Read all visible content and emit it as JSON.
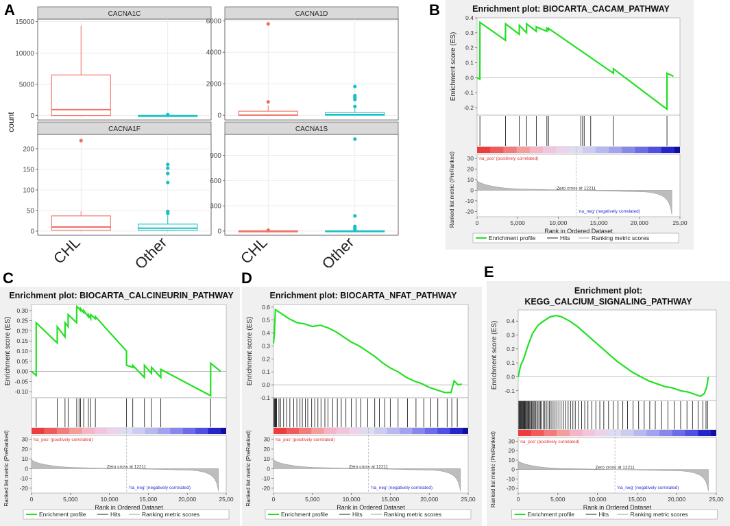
{
  "panel_letters": {
    "a": "A",
    "b": "B",
    "c": "C",
    "d": "D",
    "e": "E"
  },
  "chart_data": [
    {
      "id": "A",
      "type": "box",
      "ylabel": "count",
      "groups": [
        "CHL",
        "Other"
      ],
      "colors": {
        "CHL": "#f26e63",
        "Other": "#19bfc4"
      },
      "facets": [
        {
          "title": "CACNA1C",
          "ylim": [
            -700,
            15400
          ],
          "ticks": [
            0,
            5000,
            10000,
            15000
          ],
          "boxes": [
            {
              "group": "CHL",
              "min": 0,
              "q1": 0,
              "median": 950,
              "q3": 6500,
              "max": 14300,
              "outliers": []
            },
            {
              "group": "Other",
              "min": 0,
              "q1": 0,
              "median": 5,
              "q3": 20,
              "max": 60,
              "outliers": [
                90,
                150
              ]
            }
          ]
        },
        {
          "title": "CACNA1D",
          "ylim": [
            -300,
            6100
          ],
          "ticks": [
            0,
            2000,
            4000,
            6000
          ],
          "boxes": [
            {
              "group": "CHL",
              "min": 0,
              "q1": 0,
              "median": 10,
              "q3": 260,
              "max": 620,
              "outliers": [
                850,
                5800
              ]
            },
            {
              "group": "Other",
              "min": 0,
              "q1": 0,
              "median": 50,
              "q3": 180,
              "max": 420,
              "outliers": [
                560,
                1000,
                1120,
                1250,
                1830
              ]
            }
          ]
        },
        {
          "title": "CACNA1F",
          "ylim": [
            -10,
            235
          ],
          "ticks": [
            0,
            50,
            100,
            150,
            200
          ],
          "boxes": [
            {
              "group": "CHL",
              "min": 0,
              "q1": 2,
              "median": 10,
              "q3": 37,
              "max": 48,
              "outliers": [
                220
              ]
            },
            {
              "group": "Other",
              "min": 0,
              "q1": 2,
              "median": 7,
              "q3": 17,
              "max": 38,
              "outliers": [
                43,
                48,
                118,
                140,
                153,
                162
              ]
            }
          ]
        },
        {
          "title": "CACNA1S",
          "ylim": [
            -50,
            1150
          ],
          "ticks": [
            0,
            300,
            600,
            900
          ],
          "boxes": [
            {
              "group": "CHL",
              "min": 0,
              "q1": 0,
              "median": 0,
              "q3": 1,
              "max": 2,
              "outliers": [
                6,
                10
              ]
            },
            {
              "group": "Other",
              "min": 0,
              "q1": 0,
              "median": 0,
              "q3": 2,
              "max": 4,
              "outliers": [
                20,
                40,
                55,
                180,
                1095
              ]
            }
          ]
        }
      ]
    },
    {
      "id": "B",
      "type": "line",
      "title": "Enrichment plot: BIOCARTA_CACAM_PATHWAY",
      "ylabel": "Enrichment score (ES)",
      "xlabel": "Rank in Ordered Dataset",
      "ylabel2": "Ranked list metric (PreRanked)",
      "ylim": [
        -0.25,
        0.4
      ],
      "yticks": [
        "0.4",
        "0.3",
        "0.2",
        "0.1",
        "0.0",
        "-0.1",
        "-0.2"
      ],
      "ytick_values": [
        0.4,
        0.3,
        0.2,
        0.1,
        0.0,
        -0.1,
        -0.2
      ],
      "xlim": [
        0,
        25000
      ],
      "xticks": [
        "0",
        "5,000",
        "10,000",
        "15,000",
        "20,000",
        "25,00"
      ],
      "xtick_values": [
        0,
        5000,
        10000,
        15000,
        20000,
        25000
      ],
      "metric_ticks": [
        "30",
        "20",
        "10",
        "0",
        "-10",
        "-20"
      ],
      "metric_values": [
        30,
        20,
        10,
        0,
        -10,
        -20
      ],
      "hits": [
        350,
        3500,
        5200,
        6100,
        7300,
        8600,
        8800,
        12800,
        13000,
        13200,
        14000,
        16800,
        23400
      ],
      "es_points": [
        [
          0,
          0.0
        ],
        [
          350,
          -0.01
        ],
        [
          351,
          0.37
        ],
        [
          3500,
          0.25
        ],
        [
          3501,
          0.36
        ],
        [
          5200,
          0.29
        ],
        [
          5201,
          0.35
        ],
        [
          6100,
          0.3
        ],
        [
          6101,
          0.36
        ],
        [
          7300,
          0.31
        ],
        [
          7301,
          0.34
        ],
        [
          8600,
          0.31
        ],
        [
          8601,
          0.33
        ],
        [
          8800,
          0.32
        ],
        [
          8801,
          0.33
        ],
        [
          16800,
          0.03
        ],
        [
          16801,
          0.06
        ],
        [
          23400,
          -0.21
        ],
        [
          23401,
          0.03
        ],
        [
          24200,
          0.01
        ]
      ],
      "zero_cross": "Zero cross at 12211",
      "zero_cross_rank": 12211,
      "pos_label": "'na_pos' (positively correlated)",
      "neg_label": "'na_neg' (negatively correlated)",
      "legend": [
        "Enrichment profile",
        "Hits",
        "Ranking metric scores"
      ]
    },
    {
      "id": "C",
      "type": "line",
      "title": "Enrichment plot: BIOCARTA_CALCINEURIN_PATHWAY",
      "ylabel": "Enrichment score (ES)",
      "xlabel": "Rank in Ordered Dataset",
      "ylabel2": "Ranked list metric (PreRanked)",
      "ylim": [
        -0.13,
        0.33
      ],
      "yticks": [
        "0.30",
        "0.25",
        "0.20",
        "0.15",
        "0.10",
        "0.05",
        "0.00",
        "-0.05",
        "-0.10"
      ],
      "ytick_values": [
        0.3,
        0.25,
        0.2,
        0.15,
        0.1,
        0.05,
        0.0,
        -0.05,
        -0.1
      ],
      "xlim": [
        0,
        25000
      ],
      "xticks": [
        "0",
        "5,000",
        "10,000",
        "15,000",
        "20,000",
        "25,00"
      ],
      "xtick_values": [
        0,
        5000,
        10000,
        15000,
        20000,
        25000
      ],
      "metric_ticks": [
        "30",
        "20",
        "10",
        "0",
        "-10",
        "-20"
      ],
      "metric_values": [
        30,
        20,
        10,
        0,
        -10,
        -20
      ],
      "hits": [
        600,
        3300,
        4300,
        4700,
        5800,
        6100,
        6300,
        6700,
        7300,
        7600,
        8200,
        12200,
        13000,
        14500,
        15400,
        16600,
        23000
      ],
      "es_points": [
        [
          0,
          0.0
        ],
        [
          600,
          -0.02
        ],
        [
          601,
          0.24
        ],
        [
          3300,
          0.14
        ],
        [
          3301,
          0.22
        ],
        [
          4300,
          0.17
        ],
        [
          4301,
          0.24
        ],
        [
          4700,
          0.22
        ],
        [
          4701,
          0.28
        ],
        [
          5800,
          0.24
        ],
        [
          5801,
          0.32
        ],
        [
          6100,
          0.31
        ],
        [
          6300,
          0.3
        ],
        [
          6301,
          0.31
        ],
        [
          6700,
          0.29
        ],
        [
          6701,
          0.3
        ],
        [
          7300,
          0.27
        ],
        [
          7301,
          0.28
        ],
        [
          7600,
          0.26
        ],
        [
          7601,
          0.28
        ],
        [
          8200,
          0.26
        ],
        [
          8201,
          0.27
        ],
        [
          12200,
          0.1
        ],
        [
          12201,
          0.03
        ],
        [
          13000,
          0.02
        ],
        [
          13001,
          0.03
        ],
        [
          14500,
          -0.03
        ],
        [
          14501,
          0.03
        ],
        [
          15400,
          -0.01
        ],
        [
          15401,
          0.02
        ],
        [
          16600,
          -0.03
        ],
        [
          16601,
          0.01
        ],
        [
          23000,
          -0.12
        ],
        [
          23001,
          0.04
        ],
        [
          24300,
          0.0
        ]
      ],
      "zero_cross": "Zero cross at 12211",
      "zero_cross_rank": 12211,
      "pos_label": "'na_pos' (positively correlated)",
      "neg_label": "'na_neg' (negatively correlated)",
      "legend": [
        "Enrichment profile",
        "Hits",
        "Ranking metric scores"
      ]
    },
    {
      "id": "D",
      "type": "line",
      "title": "Enrichment plot: BIOCARTA_NFAT_PATHWAY",
      "ylabel": "Enrichment score (ES)",
      "xlabel": "Rank in Ordered Dataset",
      "ylabel2": "Ranked list metric (PreRanked)",
      "ylim": [
        -0.1,
        0.62
      ],
      "yticks": [
        "0.6",
        "0.5",
        "0.4",
        "0.3",
        "0.2",
        "0.1",
        "0.0",
        "-0.1"
      ],
      "ytick_values": [
        0.6,
        0.5,
        0.4,
        0.3,
        0.2,
        0.1,
        0.0,
        -0.1
      ],
      "xlim": [
        0,
        25000
      ],
      "xticks": [
        "0",
        "5,000",
        "10,000",
        "15,000",
        "20,000",
        "25,00"
      ],
      "xtick_values": [
        0,
        5000,
        10000,
        15000,
        20000,
        25000
      ],
      "metric_ticks": [
        "30",
        "20",
        "10",
        "0",
        "-10",
        "-20"
      ],
      "metric_values": [
        30,
        20,
        10,
        0,
        -10,
        -20
      ],
      "hits": [
        50,
        120,
        200,
        260,
        330,
        400,
        700,
        900,
        1300,
        1700,
        2100,
        2600,
        3000,
        3400,
        3700,
        4100,
        4400,
        4900,
        5300,
        5700,
        6100,
        6600,
        7000,
        7600,
        8200,
        8700,
        9300,
        10000,
        10600,
        11200,
        12100,
        13000,
        13600,
        14300,
        15000,
        16000,
        17200,
        18300,
        19300,
        20200,
        21100,
        22300,
        22900,
        23600
      ],
      "es_points": [
        [
          0,
          0.32
        ],
        [
          100,
          0.38
        ],
        [
          250,
          0.58
        ],
        [
          1000,
          0.55
        ],
        [
          2000,
          0.51
        ],
        [
          3000,
          0.48
        ],
        [
          4000,
          0.47
        ],
        [
          5000,
          0.45
        ],
        [
          6000,
          0.46
        ],
        [
          7000,
          0.44
        ],
        [
          8000,
          0.41
        ],
        [
          9000,
          0.37
        ],
        [
          10000,
          0.33
        ],
        [
          11000,
          0.3
        ],
        [
          12000,
          0.26
        ],
        [
          13000,
          0.22
        ],
        [
          14000,
          0.17
        ],
        [
          15000,
          0.13
        ],
        [
          16000,
          0.1
        ],
        [
          17000,
          0.06
        ],
        [
          18000,
          0.03
        ],
        [
          19000,
          0.01
        ],
        [
          20000,
          -0.02
        ],
        [
          21000,
          -0.04
        ],
        [
          22000,
          -0.06
        ],
        [
          22800,
          -0.06
        ],
        [
          23200,
          0.03
        ],
        [
          23700,
          0.0
        ],
        [
          24200,
          0.005
        ]
      ],
      "zero_cross": "Zero cross at 12211",
      "zero_cross_rank": 12211,
      "pos_label": "'na_pos' (positively correlated)",
      "neg_label": "'na_neg' (negatively correlated)",
      "legend": [
        "Enrichment profile",
        "Hits",
        "Ranking metric scores"
      ]
    },
    {
      "id": "E",
      "type": "line",
      "title": "Enrichment plot:",
      "title2": "KEGG_CALCIUM_SIGNALING_PATHWAY",
      "ylabel": "Enrichment score (ES)",
      "xlabel": "Rank in Ordered Dataset",
      "ylabel2": "Ranked list metric (PreRanked)",
      "ylim": [
        -0.17,
        0.48
      ],
      "yticks": [
        "0.4",
        "0.3",
        "0.2",
        "0.1",
        "0.0",
        "-0.1"
      ],
      "ytick_values": [
        0.4,
        0.3,
        0.2,
        0.1,
        0.0,
        -0.1
      ],
      "xlim": [
        0,
        25000
      ],
      "xticks": [
        "0",
        "5,000",
        "10,000",
        "15,000",
        "20,000",
        "25,00"
      ],
      "xtick_values": [
        0,
        5000,
        10000,
        15000,
        20000,
        25000
      ],
      "metric_ticks": [
        "30",
        "20",
        "10",
        "0",
        "-10",
        "-20"
      ],
      "metric_values": [
        30,
        20,
        10,
        0,
        -10,
        -20
      ],
      "hits": [
        80,
        150,
        230,
        300,
        380,
        460,
        540,
        620,
        700,
        780,
        860,
        950,
        1050,
        1150,
        1250,
        1350,
        1450,
        1560,
        1680,
        1800,
        1920,
        2050,
        2200,
        2350,
        2500,
        2650,
        2800,
        2950,
        3150,
        3350,
        3550,
        3750,
        3950,
        4150,
        4400,
        4650,
        4900,
        5150,
        5400,
        5700,
        6000,
        6300,
        6600,
        6900,
        7200,
        7600,
        8000,
        8400,
        8800,
        9300,
        9800,
        10300,
        10800,
        11400,
        12000,
        12600,
        13200,
        13800,
        14500,
        15200,
        15900,
        16600,
        17300,
        18100,
        18900,
        19700,
        20500,
        21300,
        22000,
        22700,
        23300,
        23700,
        23900
      ],
      "es_points": [
        [
          0,
          0.0
        ],
        [
          300,
          0.08
        ],
        [
          700,
          0.13
        ],
        [
          1200,
          0.22
        ],
        [
          1800,
          0.31
        ],
        [
          2500,
          0.37
        ],
        [
          3200,
          0.4
        ],
        [
          4000,
          0.43
        ],
        [
          4800,
          0.44
        ],
        [
          5500,
          0.43
        ],
        [
          6500,
          0.4
        ],
        [
          7500,
          0.36
        ],
        [
          8500,
          0.31
        ],
        [
          9500,
          0.26
        ],
        [
          10500,
          0.21
        ],
        [
          11500,
          0.16
        ],
        [
          12500,
          0.11
        ],
        [
          13500,
          0.07
        ],
        [
          14500,
          0.03
        ],
        [
          15500,
          0.0
        ],
        [
          16500,
          -0.03
        ],
        [
          17500,
          -0.05
        ],
        [
          18500,
          -0.07
        ],
        [
          19500,
          -0.08
        ],
        [
          20500,
          -0.1
        ],
        [
          21500,
          -0.11
        ],
        [
          22500,
          -0.13
        ],
        [
          23000,
          -0.14
        ],
        [
          23500,
          -0.12
        ],
        [
          23800,
          -0.07
        ],
        [
          24000,
          0.0
        ]
      ],
      "zero_cross": "Zero cross at 12211",
      "zero_cross_rank": 12211,
      "pos_label": "'na_pos' (positively correlated)",
      "neg_label": "'na_neg' (negatively correlated)",
      "legend": [
        "Enrichment profile",
        "Hits",
        "Ranking metric scores"
      ]
    }
  ]
}
